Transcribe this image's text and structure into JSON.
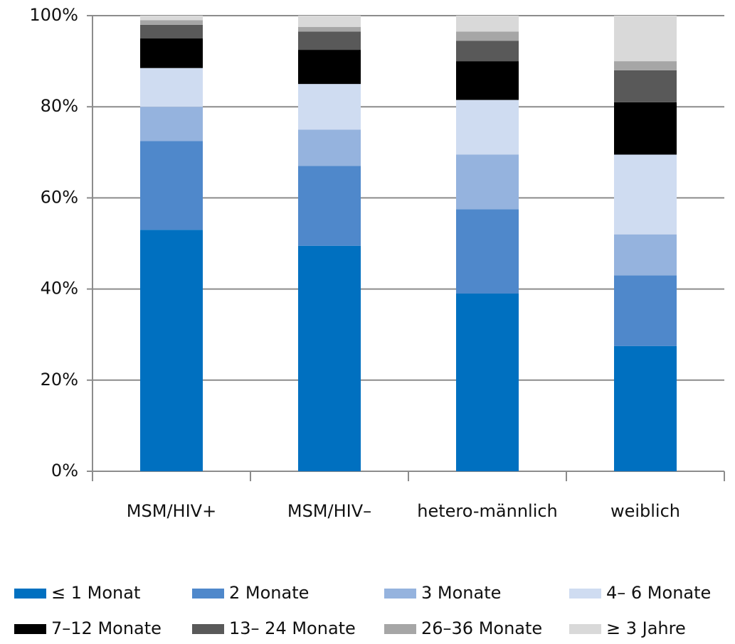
{
  "chart_data": {
    "type": "stacked_bar",
    "categories": [
      "MSM/HIV+",
      "MSM/HIV–",
      "hetero-männlich",
      "weiblich"
    ],
    "series": [
      {
        "name": "≤ 1 Monat",
        "color": "#0070c0",
        "values": [
          53,
          49.5,
          39,
          27.5
        ]
      },
      {
        "name": "2 Monate",
        "color": "#4f88cb",
        "values": [
          19.5,
          17.5,
          18.5,
          15.5
        ]
      },
      {
        "name": "3 Monate",
        "color": "#95b3de",
        "values": [
          7.5,
          8,
          12,
          9
        ]
      },
      {
        "name": "4– 6 Monate",
        "color": "#cfdcf1",
        "values": [
          8.5,
          10,
          12,
          17.5
        ]
      },
      {
        "name": "7–12 Monate",
        "color": "#000000",
        "values": [
          6.5,
          7.5,
          8.5,
          11.5
        ]
      },
      {
        "name": "13– 24 Monate",
        "color": "#595959",
        "values": [
          3,
          4,
          4.5,
          7
        ]
      },
      {
        "name": "26–36 Monate",
        "color": "#a6a6a6",
        "values": [
          1,
          1,
          2,
          2
        ]
      },
      {
        "name": "≥ 3 Jahre",
        "color": "#d9d9d9",
        "values": [
          1,
          2.5,
          3.5,
          10
        ]
      }
    ],
    "ylim": [
      0,
      100
    ],
    "yticks": [
      {
        "value": 0,
        "label": "0%"
      },
      {
        "value": 20,
        "label": "20%"
      },
      {
        "value": 40,
        "label": "40%"
      },
      {
        "value": 60,
        "label": "60%"
      },
      {
        "value": 80,
        "label": "80%"
      },
      {
        "value": 100,
        "label": "100%"
      }
    ],
    "grid": true
  }
}
